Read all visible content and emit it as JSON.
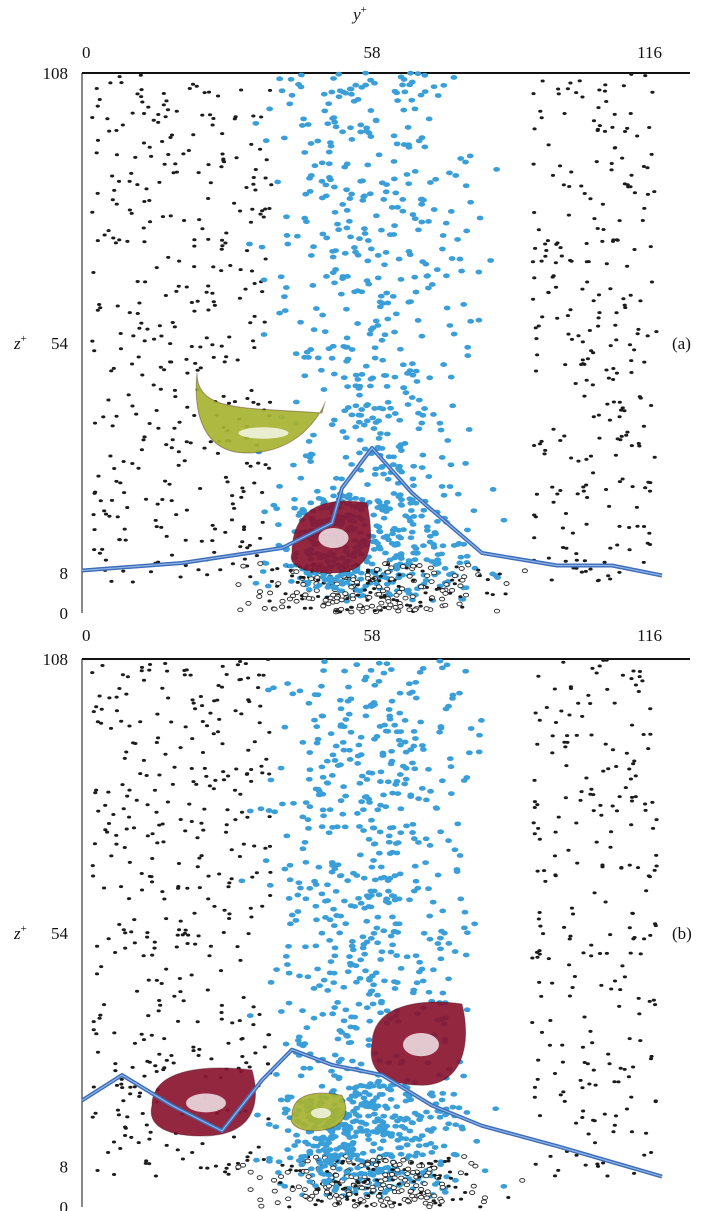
{
  "chart_data": [
    {
      "panel_label": "(a)",
      "type": "scatter",
      "xlabel_base": "y",
      "xlabel_sup": "+",
      "ylabel_base": "z",
      "ylabel_sup": "+",
      "x_ticks": [
        "0",
        "58",
        "116"
      ],
      "y_ticks": [
        "0",
        "8",
        "54",
        "108"
      ],
      "xlim": [
        0,
        116
      ],
      "ylim": [
        0,
        108
      ],
      "grid": false,
      "colors": {
        "filled": "#3a9fd8",
        "dark": "#1c1c1c",
        "ribbon": "#3d6db8",
        "vortex_red": "#8a1530",
        "vortex_green": "#a8b431"
      },
      "ribbon": {
        "x": [
          0,
          20,
          40,
          50,
          52,
          58,
          66,
          80,
          95,
          106,
          116
        ],
        "y": [
          8.5,
          10,
          13,
          18,
          25,
          33,
          24,
          12,
          9.5,
          9.5,
          7.5
        ]
      },
      "vortices": [
        {
          "color": "green",
          "x": [
            23,
            33,
            48
          ],
          "y": [
            32,
            48,
            40
          ]
        },
        {
          "color": "red",
          "x": [
            42,
            50,
            57
          ],
          "y": [
            8,
            12,
            22
          ]
        }
      ]
    },
    {
      "panel_label": "(b)",
      "type": "scatter",
      "ylabel_base": "z",
      "ylabel_sup": "+",
      "x_ticks": [
        "0",
        "58",
        "116"
      ],
      "y_ticks": [
        "0",
        "8",
        "54",
        "108"
      ],
      "xlim": [
        0,
        116
      ],
      "ylim": [
        0,
        108
      ],
      "grid": false,
      "colors": {
        "filled": "#3a9fd8",
        "dark": "#1c1c1c",
        "ribbon": "#3d6db8",
        "vortex_red": "#8a1530",
        "vortex_green": "#a8b431"
      },
      "ribbon": {
        "x": [
          0,
          8,
          18,
          28,
          36,
          42,
          50,
          60,
          70,
          80,
          95,
          116
        ],
        "y": [
          21,
          26,
          20,
          15,
          25,
          31,
          28,
          26,
          20,
          16,
          12,
          6
        ]
      },
      "vortices": [
        {
          "color": "red",
          "x": [
            14,
            24,
            34
          ],
          "y": [
            14,
            20,
            27
          ]
        },
        {
          "color": "red",
          "x": [
            58,
            68,
            76
          ],
          "y": [
            24,
            32,
            40
          ]
        },
        {
          "color": "green",
          "x": [
            42,
            46,
            52
          ],
          "y": [
            15,
            18,
            22
          ]
        }
      ]
    }
  ]
}
